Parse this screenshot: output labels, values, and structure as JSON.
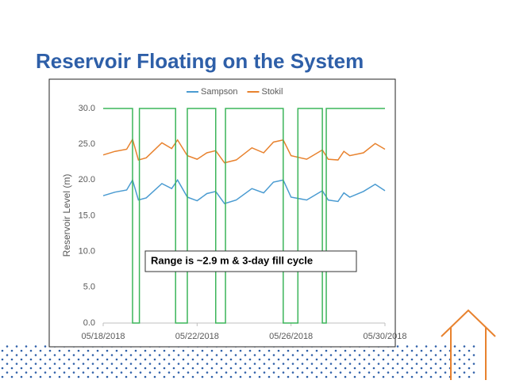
{
  "title": "Reservoir Floating on the System",
  "chart_data": {
    "type": "line",
    "ylabel": "Reservoir Level (m)",
    "annotation": "Range is ~2.9 m & 3-day fill cycle",
    "xlim": [
      "2018-05-18T00:00",
      "2018-05-30T00:00"
    ],
    "xticks": [
      {
        "value": "2018-05-18T00:00",
        "label": "05/18/2018"
      },
      {
        "value": "2018-05-22T00:00",
        "label": "05/22/2018"
      },
      {
        "value": "2018-05-26T00:00",
        "label": "05/26/2018"
      },
      {
        "value": "2018-05-30T00:00",
        "label": "05/30/2018"
      }
    ],
    "ylim": [
      0,
      30
    ],
    "yticks": [
      {
        "value": 0,
        "label": "0.0"
      },
      {
        "value": 5,
        "label": "5.0"
      },
      {
        "value": 10,
        "label": "10.0"
      },
      {
        "value": 15,
        "label": "15.0"
      },
      {
        "value": 20,
        "label": "20.0"
      },
      {
        "value": 25,
        "label": "25.0"
      },
      {
        "value": 30,
        "label": "30.0"
      }
    ],
    "grid": false,
    "legend": "top",
    "series": [
      {
        "name": "Sampson",
        "color": "#4a9bd1",
        "x": [
          "2018-05-18T00:00",
          "2018-05-18T12:00",
          "2018-05-19T00:00",
          "2018-05-19T06:00",
          "2018-05-19T12:00",
          "2018-05-19T20:00",
          "2018-05-20T12:00",
          "2018-05-20T22:00",
          "2018-05-21T04:00",
          "2018-05-21T14:00",
          "2018-05-22T00:00",
          "2018-05-22T10:00",
          "2018-05-22T19:00",
          "2018-05-23T04:00",
          "2018-05-23T16:00",
          "2018-05-24T08:00",
          "2018-05-24T20:00",
          "2018-05-25T06:00",
          "2018-05-25T16:00",
          "2018-05-26T00:00",
          "2018-05-26T16:00",
          "2018-05-27T08:00",
          "2018-05-27T14:00",
          "2018-05-28T00:00",
          "2018-05-28T06:00",
          "2018-05-28T12:00",
          "2018-05-29T02:00",
          "2018-05-29T14:00",
          "2018-05-30T00:00"
        ],
        "values": [
          17.8,
          18.3,
          18.6,
          20.0,
          17.2,
          17.5,
          19.5,
          18.8,
          20.0,
          17.6,
          17.1,
          18.1,
          18.4,
          16.7,
          17.2,
          18.8,
          18.2,
          19.7,
          20.0,
          17.6,
          17.2,
          18.5,
          17.2,
          17.0,
          18.2,
          17.6,
          18.4,
          19.4,
          18.5
        ]
      },
      {
        "name": "Stokil",
        "color": "#e8822e",
        "x": [
          "2018-05-18T00:00",
          "2018-05-18T12:00",
          "2018-05-19T00:00",
          "2018-05-19T06:00",
          "2018-05-19T12:00",
          "2018-05-19T20:00",
          "2018-05-20T12:00",
          "2018-05-20T22:00",
          "2018-05-21T04:00",
          "2018-05-21T14:00",
          "2018-05-22T00:00",
          "2018-05-22T10:00",
          "2018-05-22T19:00",
          "2018-05-23T04:00",
          "2018-05-23T16:00",
          "2018-05-24T08:00",
          "2018-05-24T20:00",
          "2018-05-25T06:00",
          "2018-05-25T16:00",
          "2018-05-26T00:00",
          "2018-05-26T16:00",
          "2018-05-27T08:00",
          "2018-05-27T14:00",
          "2018-05-28T00:00",
          "2018-05-28T06:00",
          "2018-05-28T12:00",
          "2018-05-29T02:00",
          "2018-05-29T14:00",
          "2018-05-30T00:00"
        ],
        "values": [
          23.5,
          24.0,
          24.3,
          25.7,
          22.8,
          23.1,
          25.2,
          24.4,
          25.6,
          23.4,
          22.9,
          23.8,
          24.1,
          22.4,
          22.8,
          24.5,
          23.8,
          25.3,
          25.6,
          23.4,
          22.9,
          24.2,
          22.9,
          22.8,
          24.0,
          23.4,
          23.8,
          25.1,
          24.3
        ]
      },
      {
        "color": "#3cb55a",
        "x": [
          "2018-05-18T00:00",
          "2018-05-19T06:00",
          "2018-05-19T06:00",
          "2018-05-19T13:00",
          "2018-05-19T13:00",
          "2018-05-21T02:00",
          "2018-05-21T02:00",
          "2018-05-21T14:00",
          "2018-05-21T14:00",
          "2018-05-22T19:00",
          "2018-05-22T19:00",
          "2018-05-23T05:00",
          "2018-05-23T05:00",
          "2018-05-25T16:00",
          "2018-05-25T16:00",
          "2018-05-26T07:00",
          "2018-05-26T07:00",
          "2018-05-27T08:00",
          "2018-05-27T08:00",
          "2018-05-27T12:00",
          "2018-05-27T12:00",
          "2018-05-30T00:00"
        ],
        "values": [
          30,
          30,
          0,
          0,
          30,
          30,
          0,
          0,
          30,
          30,
          0,
          0,
          30,
          30,
          0,
          0,
          30,
          30,
          0,
          0,
          30,
          30
        ]
      }
    ]
  }
}
